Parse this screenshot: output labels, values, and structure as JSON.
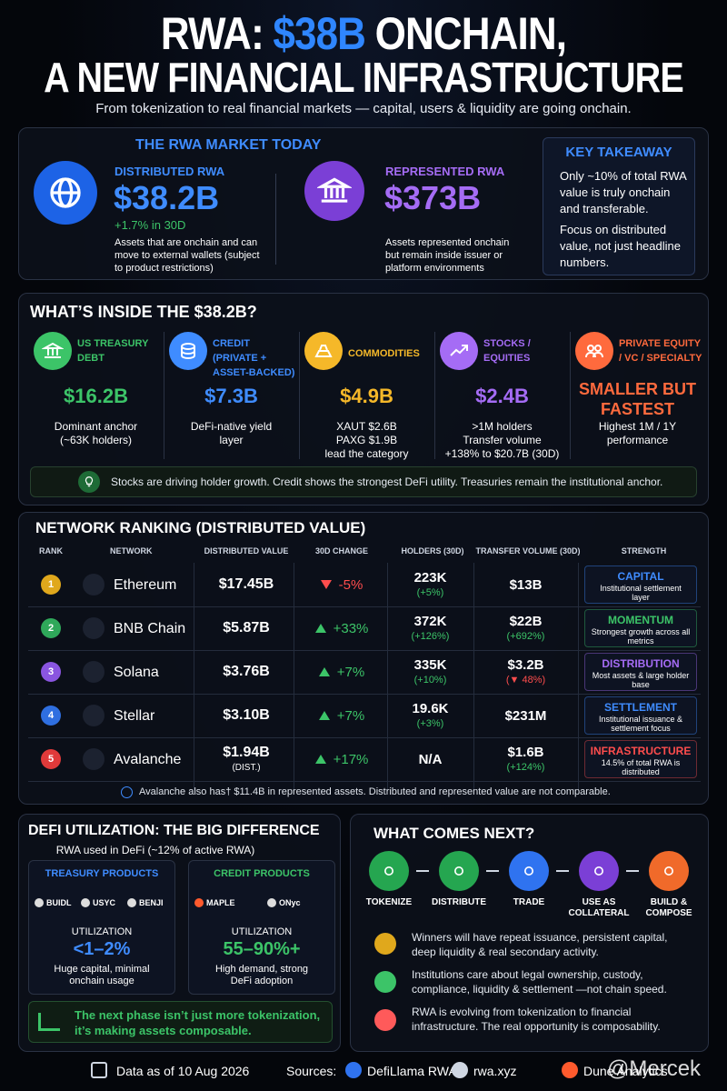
{
  "header": {
    "title_a": "RWA:",
    "title_hl": "$38B",
    "title_b": "ONCHAIN,",
    "title_line2": "A NEW FINANCIAL INFRASTRUCTURE",
    "subtitle": "From tokenization to real financial markets — capital, users & liquidity are going onchain."
  },
  "market": {
    "title": "THE RWA MARKET TODAY",
    "distributed": {
      "label": "DISTRIBUTED RWA",
      "value": "$38.2B",
      "change": "+1.7% in 30D",
      "desc": "Assets that are onchain and can move to external wallets (subject to product restrictions)"
    },
    "represented": {
      "label": "REPRESENTED RWA",
      "value": "$373B",
      "desc": "Assets represented onchain but remain inside issuer or platform environments"
    },
    "takeaway": {
      "title": "KEY TAKEAWAY",
      "p1": "Only ~10% of total RWA value is truly onchain and transferable.",
      "p2": "Focus on distributed value, not just headline numbers."
    }
  },
  "inside": {
    "title": "WHAT’S INSIDE THE $38.2B?",
    "categories": [
      {
        "name": "US TREASURY DEBT",
        "color": "#3cc468",
        "value": "$16.2B",
        "desc": [
          "Dominant anchor",
          "(~63K holders)"
        ]
      },
      {
        "name": "CREDIT (PRIVATE + ASSET-BACKED)",
        "color": "#3f8cff",
        "value": "$7.3B",
        "desc": [
          "DeFi-native yield",
          "layer"
        ]
      },
      {
        "name": "COMMODITIES",
        "color": "#f5b829",
        "value": "$4.9B",
        "desc": [
          "XAUT $2.6B",
          "PAXG $1.9B",
          "lead the category"
        ]
      },
      {
        "name": "STOCKS / EQUITIES",
        "color": "#a56cf5",
        "value": "$2.4B",
        "desc": [
          ">1M holders",
          "Transfer volume",
          "+138% to $20.7B (30D)"
        ]
      },
      {
        "name": "PRIVATE EQUITY / VC / SPECIALTY",
        "color": "#ff6a3d",
        "value": "SMALLER BUT FASTEST",
        "desc": [
          "Highest 1M / 1Y",
          "performance"
        ]
      }
    ],
    "note": "Stocks are driving holder growth. Credit shows the strongest DeFi utility. Treasuries remain the institutional anchor."
  },
  "ranking": {
    "title": "NETWORK RANKING (DISTRIBUTED VALUE)",
    "columns": [
      "RANK",
      "NETWORK",
      "DISTRIBUTED VALUE",
      "30D CHANGE",
      "HOLDERS (30D)",
      "TRANSFER VOLUME (30D)",
      "STRENGTH"
    ],
    "rows": [
      {
        "rank": "1",
        "rank_color": "#e0a81c",
        "network": "Ethereum",
        "value": "$17.45B",
        "change": "-5%",
        "change_dir": "down",
        "change_color": "#ff4d4d",
        "holders": "223K",
        "holders_change": "(+5%)",
        "volume": "$13B",
        "strength": "CAPITAL",
        "strength_desc": "Institutional settlement layer",
        "strength_color": "#3f8cff"
      },
      {
        "rank": "2",
        "rank_color": "#2fa85a",
        "network": "BNB Chain",
        "value": "$5.87B",
        "change": "+33%",
        "change_dir": "up",
        "change_color": "#3cc468",
        "holders": "372K",
        "holders_change": "(+126%)",
        "volume": "$22B",
        "volume_change": "(+692%)",
        "volume_change_color": "#3cc468",
        "strength": "MOMENTUM",
        "strength_desc": "Strongest growth across all metrics",
        "strength_color": "#3cc468"
      },
      {
        "rank": "3",
        "rank_color": "#8a55e0",
        "network": "Solana",
        "value": "$3.76B",
        "change": "+7%",
        "change_dir": "up",
        "change_color": "#3cc468",
        "holders": "335K",
        "holders_change": "(+10%)",
        "volume": "$3.2B",
        "volume_change": "(▼ 48%)",
        "volume_change_color": "#ff4d4d",
        "strength": "DISTRIBUTION",
        "strength_desc": "Most assets & large holder base",
        "strength_color": "#a56cf5"
      },
      {
        "rank": "4",
        "rank_color": "#2f6fe0",
        "network": "Stellar",
        "value": "$3.10B",
        "change": "+7%",
        "change_dir": "up",
        "change_color": "#3cc468",
        "holders": "19.6K",
        "holders_change": "(+3%)",
        "volume": "$231M",
        "strength": "SETTLEMENT",
        "strength_desc": "Institutional issuance & settlement focus",
        "strength_color": "#3f8cff"
      },
      {
        "rank": "5",
        "rank_color": "#e03a3a",
        "network": "Avalanche",
        "value": "$1.94B",
        "value_note": "(DIST.)",
        "change": "+17%",
        "change_dir": "up",
        "change_color": "#3cc468",
        "holders": "N/A",
        "volume": "$1.6B",
        "volume_change": "(+124%)",
        "volume_change_color": "#3cc468",
        "strength": "INFRASTRUCTURE",
        "strength_desc": "14.5% of total RWA is distributed",
        "strength_color": "#ff4d4d"
      }
    ],
    "note": "Avalanche also has† $11.4B in represented assets. Distributed and represented value are not comparable."
  },
  "defi": {
    "title": "DEFI UTILIZATION: THE BIG DIFFERENCE",
    "subtitle": "RWA used in DeFi (~12% of active RWA)",
    "treasury": {
      "title": "TREASURY PRODUCTS",
      "products": [
        "BUIDL",
        "USYC",
        "BENJI"
      ],
      "util_label": "UTILIZATION",
      "util": "<1–2%",
      "desc": "Huge capital, minimal onchain usage"
    },
    "credit": {
      "title": "CREDIT PRODUCTS",
      "products": [
        "MAPLE",
        "ONyc"
      ],
      "util_label": "UTILIZATION",
      "util": "55–90%+",
      "desc": "High demand, strong DeFi adoption"
    },
    "note": "The next phase isn’t just more tokenization, it’s making assets composable."
  },
  "next": {
    "title": "WHAT COMES NEXT?",
    "steps": [
      "TOKENIZE",
      "DISTRIBUTE",
      "TRADE",
      "USE AS COLLATERAL",
      "BUILD & COMPOSE"
    ],
    "points": [
      "Winners will have repeat issuance, persistent capital, deep liquidity & real secondary activity.",
      "Institutions care about legal ownership, custody, compliance, liquidity & settlement —not chain speed.",
      "RWA is evolving from tokenization to financial infrastructure. The real opportunity is composability."
    ]
  },
  "footer": {
    "date": "Data as of 10 Aug 2026",
    "sources_label": "Sources:",
    "sources": [
      "DefiLlama RWA",
      "rwa.xyz",
      "Dune Analytics"
    ],
    "watermark": "@Mercek"
  }
}
